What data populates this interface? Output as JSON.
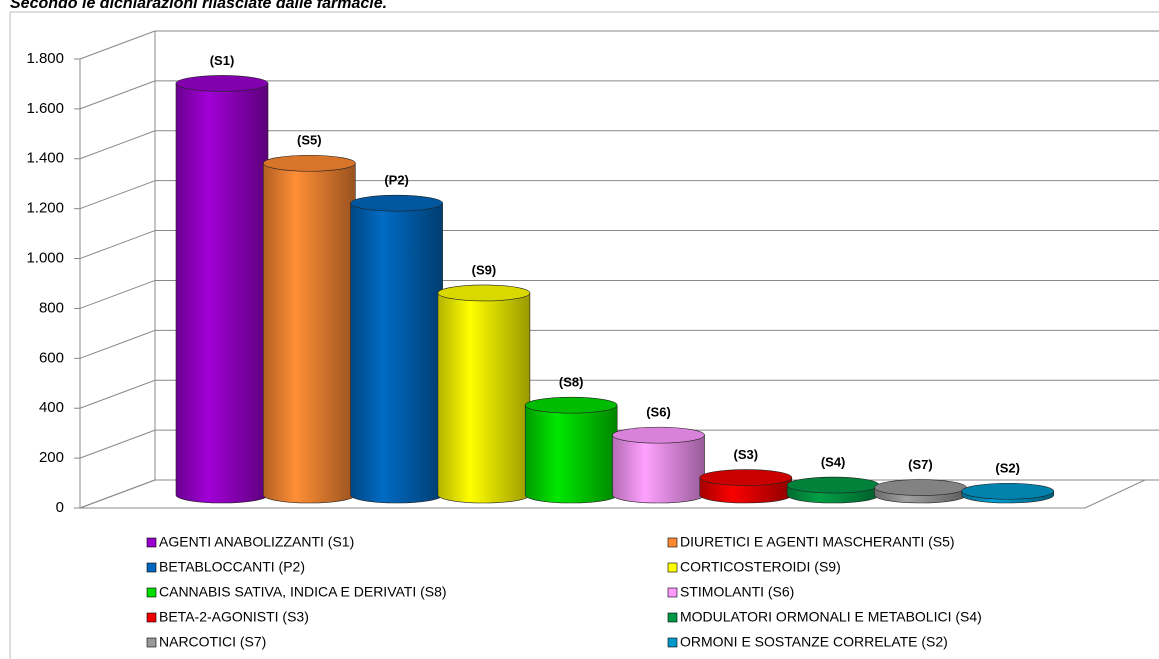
{
  "chart_data": {
    "type": "bar3d",
    "title": "Secondo le dichiarazioni rilasciate dalle farmacie.",
    "categories": [
      "AGENTI ANABOLIZZANTI (S1)",
      "DIURETICI E AGENTI MASCHERANTI (S5)",
      "BETABLOCCANTI (P2)",
      "CORTICOSTEROIDI (S9)",
      "CANNABIS SATIVA, INDICA E DERIVATI (S8)",
      "STIMOLANTI (S6)",
      "BETA-2-AGONISTI (S3)",
      "MODULATORI ORMONALI E METABOLICI (S4)",
      "NARCOTICI (S7)",
      "ORMONI E SOSTANZE CORRELATE (S2)"
    ],
    "bar_labels": [
      "(S1)",
      "(S5)",
      "(P2)",
      "(S9)",
      "(S8)",
      "(S6)",
      "(S3)",
      "(S4)",
      "(S7)",
      "(S2)"
    ],
    "values": [
      1650,
      1330,
      1170,
      810,
      360,
      240,
      70,
      40,
      30,
      15
    ],
    "colors": [
      "#9900cc",
      "#ff8833",
      "#0066bb",
      "#ffff00",
      "#00dd00",
      "#ff99ff",
      "#ee0000",
      "#009944",
      "#999999",
      "#0099cc"
    ],
    "ylim": [
      0,
      1800
    ],
    "yticks": [
      0,
      200,
      400,
      600,
      800,
      {
        "value": 1000,
        "label": "1.000"
      },
      {
        "value": 1200,
        "label": "1.200"
      },
      {
        "value": 1400,
        "label": "1.400"
      },
      {
        "value": 1600,
        "label": "1.600"
      },
      {
        "value": 1800,
        "label": "1.800"
      }
    ],
    "grid": true
  }
}
